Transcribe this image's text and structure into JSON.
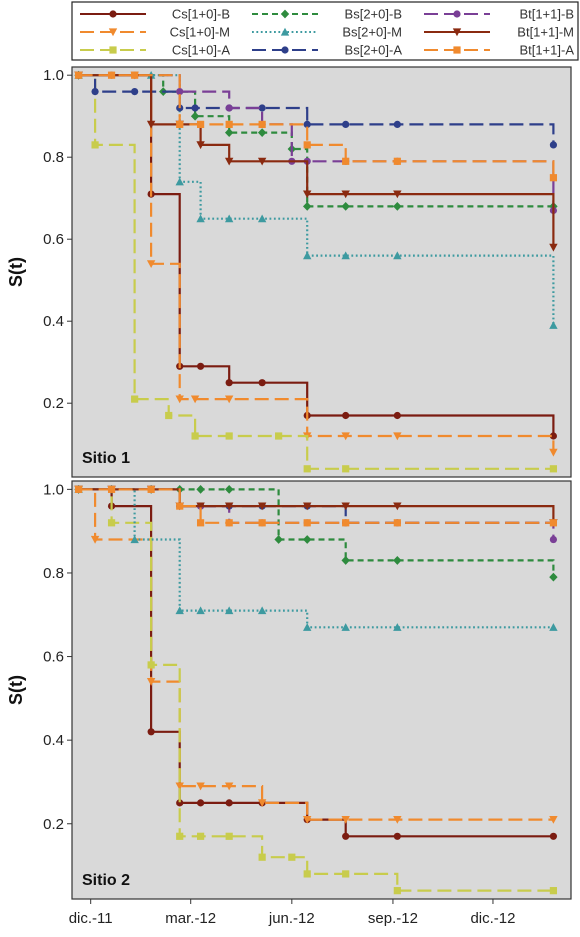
{
  "chart_data": {
    "type": "line",
    "subtype": "step (Kaplan-Meier survival curves)",
    "xlabel": "",
    "ylabel": "S(t)",
    "x_ticks": [
      "dic.-11",
      "mar.-12",
      "jun.-12",
      "sep.-12",
      "dic.-12"
    ],
    "xlim": [
      "2011-11-14",
      "2013-02-10"
    ],
    "legend_placement": "top",
    "grid": false,
    "series": [
      {
        "name": "Cs[1+0]-B",
        "color": "#7b1c11",
        "dash": "solid",
        "marker": "circle"
      },
      {
        "name": "Cs[1+0]-M",
        "color": "#f08a2e",
        "dash": "longdash",
        "marker": "triangle-down"
      },
      {
        "name": "Cs[1+0]-A",
        "color": "#c8cc4c",
        "dash": "longdash",
        "marker": "square"
      },
      {
        "name": "Bs[2+0]-B",
        "color": "#2e8b3e",
        "dash": "dash",
        "marker": "diamond"
      },
      {
        "name": "Bs[2+0]-M",
        "color": "#3d9aa0",
        "dash": "dot",
        "marker": "triangle-up"
      },
      {
        "name": "Bs[2+0]-A",
        "color": "#2e3f8a",
        "dash": "longdash",
        "marker": "circle"
      },
      {
        "name": "Bt[1+1]-B",
        "color": "#7a3f96",
        "dash": "longdash",
        "marker": "circle"
      },
      {
        "name": "Bt[1+1]-M",
        "color": "#8a2a10",
        "dash": "solid",
        "marker": "triangle-down"
      },
      {
        "name": "Bt[1+1]-A",
        "color": "#f08a2e",
        "dash": "longdash",
        "marker": "square"
      }
    ],
    "panels": [
      {
        "label": "Sitio 1",
        "ylim": [
          0.02,
          1.02
        ],
        "y_ticks": [
          "1.0",
          "0.8",
          "0.6",
          "0.4",
          "0.2"
        ],
        "curves": {
          "Cs[1+0]-B": {
            "x": [
              "2011-11-20",
              "2011-12-20",
              "2012-01-10",
              "2012-01-25",
              "2012-02-20",
              "2012-03-10",
              "2012-04-05",
              "2012-05-05",
              "2012-06-15",
              "2012-07-20",
              "2012-09-05",
              "2013-01-25"
            ],
            "y": [
              1.0,
              1.0,
              1.0,
              0.71,
              0.29,
              0.29,
              0.25,
              0.25,
              0.17,
              0.17,
              0.17,
              0.12
            ]
          },
          "Cs[1+0]-M": {
            "x": [
              "2011-11-20",
              "2012-01-10",
              "2012-01-25",
              "2012-02-20",
              "2012-03-05",
              "2012-04-05",
              "2012-06-15",
              "2012-07-20",
              "2012-09-05",
              "2013-01-25"
            ],
            "y": [
              1.0,
              1.0,
              0.54,
              0.21,
              0.21,
              0.21,
              0.12,
              0.12,
              0.12,
              0.08
            ]
          },
          "Cs[1+0]-A": {
            "x": [
              "2011-11-20",
              "2011-12-05",
              "2012-01-10",
              "2012-02-10",
              "2012-03-05",
              "2012-04-05",
              "2012-05-20",
              "2012-06-15",
              "2012-07-20",
              "2013-01-25"
            ],
            "y": [
              1.0,
              0.83,
              0.21,
              0.17,
              0.12,
              0.12,
              0.12,
              0.04,
              0.04,
              0.04
            ]
          },
          "Bs[2+0]-B": {
            "x": [
              "2011-11-20",
              "2012-02-05",
              "2012-03-05",
              "2012-04-05",
              "2012-05-05",
              "2012-06-01",
              "2012-06-15",
              "2012-07-20",
              "2012-09-05",
              "2013-01-25"
            ],
            "y": [
              1.0,
              0.96,
              0.9,
              0.86,
              0.86,
              0.82,
              0.68,
              0.68,
              0.68,
              0.68
            ]
          },
          "Bs[2+0]-M": {
            "x": [
              "2011-11-20",
              "2012-01-25",
              "2012-02-20",
              "2012-03-10",
              "2012-04-05",
              "2012-05-05",
              "2012-06-15",
              "2012-07-20",
              "2012-09-05",
              "2013-01-25"
            ],
            "y": [
              1.0,
              1.0,
              0.74,
              0.65,
              0.65,
              0.65,
              0.56,
              0.56,
              0.56,
              0.39
            ]
          },
          "Bs[2+0]-A": {
            "x": [
              "2011-11-20",
              "2011-12-05",
              "2012-01-10",
              "2012-02-20",
              "2012-03-05",
              "2012-04-05",
              "2012-05-05",
              "2012-06-15",
              "2012-07-20",
              "2012-09-05",
              "2013-01-25"
            ],
            "y": [
              1.0,
              0.96,
              0.96,
              0.92,
              0.92,
              0.92,
              0.92,
              0.88,
              0.88,
              0.88,
              0.83
            ]
          },
          "Bt[1+1]-B": {
            "x": [
              "2011-11-20",
              "2012-02-20",
              "2012-04-05",
              "2012-05-05",
              "2012-06-01",
              "2012-06-15",
              "2012-07-20",
              "2012-09-05",
              "2013-01-25"
            ],
            "y": [
              1.0,
              0.96,
              0.92,
              0.88,
              0.79,
              0.79,
              0.79,
              0.79,
              0.67
            ]
          },
          "Bt[1+1]-M": {
            "x": [
              "2011-11-20",
              "2012-01-25",
              "2012-02-20",
              "2012-03-10",
              "2012-04-05",
              "2012-05-05",
              "2012-06-15",
              "2012-07-20",
              "2012-09-05",
              "2013-01-25"
            ],
            "y": [
              1.0,
              0.88,
              0.88,
              0.83,
              0.79,
              0.79,
              0.71,
              0.71,
              0.71,
              0.58
            ]
          },
          "Bt[1+1]-A": {
            "x": [
              "2011-11-20",
              "2011-12-20",
              "2012-01-10",
              "2012-02-20",
              "2012-03-10",
              "2012-04-05",
              "2012-05-05",
              "2012-06-15",
              "2012-07-20",
              "2012-09-05",
              "2013-01-25"
            ],
            "y": [
              1.0,
              1.0,
              1.0,
              0.88,
              0.88,
              0.88,
              0.88,
              0.83,
              0.79,
              0.79,
              0.75
            ]
          }
        }
      },
      {
        "label": "Sitio 2",
        "ylim": [
          0.02,
          1.02
        ],
        "y_ticks": [
          "1.0",
          "0.8",
          "0.6",
          "0.4",
          "0.2"
        ],
        "curves": {
          "Cs[1+0]-B": {
            "x": [
              "2011-11-20",
              "2011-12-20",
              "2012-01-25",
              "2012-02-20",
              "2012-03-10",
              "2012-04-05",
              "2012-05-05",
              "2012-06-15",
              "2012-07-20",
              "2012-09-05",
              "2013-01-25"
            ],
            "y": [
              1.0,
              0.96,
              0.42,
              0.25,
              0.25,
              0.25,
              0.25,
              0.21,
              0.17,
              0.17,
              0.17
            ]
          },
          "Cs[1+0]-M": {
            "x": [
              "2011-11-20",
              "2011-12-05",
              "2012-01-25",
              "2012-02-20",
              "2012-03-10",
              "2012-04-05",
              "2012-05-05",
              "2012-06-15",
              "2012-07-20",
              "2012-09-05",
              "2013-01-25"
            ],
            "y": [
              1.0,
              0.88,
              0.54,
              0.29,
              0.29,
              0.29,
              0.25,
              0.21,
              0.21,
              0.21,
              0.21
            ]
          },
          "Cs[1+0]-A": {
            "x": [
              "2011-11-20",
              "2011-12-20",
              "2012-01-25",
              "2012-02-20",
              "2012-03-10",
              "2012-04-05",
              "2012-05-05",
              "2012-06-01",
              "2012-06-15",
              "2012-07-20",
              "2012-09-05",
              "2013-01-25"
            ],
            "y": [
              1.0,
              0.92,
              0.58,
              0.17,
              0.17,
              0.17,
              0.12,
              0.12,
              0.08,
              0.08,
              0.04,
              0.04
            ]
          },
          "Bs[2+0]-B": {
            "x": [
              "2011-11-20",
              "2011-12-20",
              "2012-01-25",
              "2012-02-20",
              "2012-03-10",
              "2012-04-05",
              "2012-05-20",
              "2012-06-15",
              "2012-07-20",
              "2012-09-05",
              "2013-01-25"
            ],
            "y": [
              1.0,
              1.0,
              1.0,
              1.0,
              1.0,
              1.0,
              0.88,
              0.88,
              0.83,
              0.83,
              0.79
            ]
          },
          "Bs[2+0]-M": {
            "x": [
              "2011-11-20",
              "2012-01-10",
              "2012-02-20",
              "2012-03-10",
              "2012-04-05",
              "2012-05-05",
              "2012-06-15",
              "2012-07-20",
              "2012-09-05",
              "2013-01-25"
            ],
            "y": [
              1.0,
              0.88,
              0.71,
              0.71,
              0.71,
              0.71,
              0.67,
              0.67,
              0.67,
              0.67
            ]
          },
          "Bs[2+0]-A": {
            "x": [
              "2011-11-20",
              "2011-12-20",
              "2012-01-25",
              "2012-02-20",
              "2012-03-10",
              "2012-04-05",
              "2012-05-05",
              "2012-06-15",
              "2012-07-20",
              "2012-09-05",
              "2013-01-25"
            ],
            "y": [
              1.0,
              1.0,
              1.0,
              0.96,
              0.96,
              0.96,
              0.96,
              0.96,
              0.92,
              0.92,
              0.92
            ]
          },
          "Bt[1+1]-B": {
            "x": [
              "2011-11-20",
              "2011-12-20",
              "2012-01-25",
              "2012-02-20",
              "2012-03-10",
              "2012-04-05",
              "2012-05-05",
              "2012-06-15",
              "2012-07-20",
              "2012-09-05",
              "2013-01-25"
            ],
            "y": [
              1.0,
              1.0,
              1.0,
              0.96,
              0.96,
              0.92,
              0.92,
              0.92,
              0.92,
              0.92,
              0.88
            ]
          },
          "Bt[1+1]-M": {
            "x": [
              "2011-11-20",
              "2011-12-20",
              "2012-01-25",
              "2012-02-20",
              "2012-03-10",
              "2012-04-05",
              "2012-05-05",
              "2012-06-15",
              "2012-07-20",
              "2012-09-05",
              "2013-01-25"
            ],
            "y": [
              1.0,
              1.0,
              1.0,
              0.96,
              0.96,
              0.96,
              0.96,
              0.96,
              0.96,
              0.96,
              0.92
            ]
          },
          "Bt[1+1]-A": {
            "x": [
              "2011-11-20",
              "2011-12-20",
              "2012-01-25",
              "2012-02-20",
              "2012-03-10",
              "2012-04-05",
              "2012-05-05",
              "2012-06-15",
              "2012-07-20",
              "2012-09-05",
              "2013-01-25"
            ],
            "y": [
              1.0,
              1.0,
              1.0,
              0.96,
              0.92,
              0.92,
              0.92,
              0.92,
              0.92,
              0.92,
              0.92
            ]
          }
        }
      }
    ]
  }
}
